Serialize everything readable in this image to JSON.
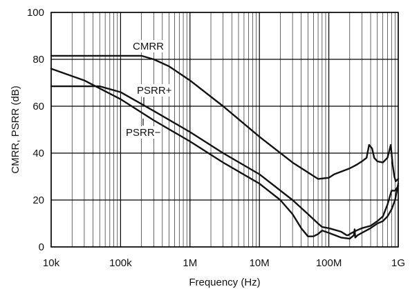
{
  "chart_data": {
    "type": "line",
    "xlabel": "Frequency (Hz)",
    "ylabel": "CMRR, PSRR (dB)",
    "xscale": "log",
    "xlim": [
      10000,
      1000000000
    ],
    "ylim": [
      0,
      100
    ],
    "grid": true,
    "x_ticks": [
      {
        "value": 10000,
        "label": "10k"
      },
      {
        "value": 100000,
        "label": "100k"
      },
      {
        "value": 1000000,
        "label": "1M"
      },
      {
        "value": 10000000,
        "label": "10M"
      },
      {
        "value": 100000000,
        "label": "100M"
      },
      {
        "value": 1000000000,
        "label": "1G"
      }
    ],
    "y_ticks": [
      {
        "value": 0,
        "label": "0"
      },
      {
        "value": 20,
        "label": "20"
      },
      {
        "value": 40,
        "label": "40"
      },
      {
        "value": 60,
        "label": "60"
      },
      {
        "value": 80,
        "label": "80"
      },
      {
        "value": 100,
        "label": "100"
      }
    ],
    "series": [
      {
        "name": "CMRR",
        "label": "CMRR",
        "x": [
          10000,
          100000,
          200000,
          300000,
          500000,
          1000000,
          3000000,
          10000000,
          30000000,
          70000000,
          100000000,
          120000000,
          200000000,
          250000000,
          300000000,
          350000000,
          380000000,
          420000000,
          450000000,
          500000000,
          600000000,
          700000000,
          780000000,
          830000000,
          880000000,
          920000000,
          1000000000
        ],
        "y": [
          81.5,
          81.5,
          81.5,
          80,
          77,
          71,
          60,
          47,
          36,
          29,
          29.5,
          31,
          33.5,
          35,
          36.5,
          38,
          43.5,
          42,
          38,
          36.5,
          36,
          38,
          43.5,
          35,
          30,
          28,
          29
        ]
      },
      {
        "name": "PSRR+",
        "label": "PSRR+",
        "x": [
          10000,
          30000,
          50000,
          100000,
          300000,
          1000000,
          3000000,
          10000000,
          30000000,
          50000000,
          70000000,
          80000000,
          100000000,
          150000000,
          170000000,
          180000000,
          190000000,
          200000000,
          250000000,
          300000000,
          400000000,
          500000000,
          600000000,
          700000000,
          800000000,
          900000000,
          1000000000
        ],
        "y": [
          68.5,
          68.5,
          68.5,
          66,
          58,
          49,
          40,
          31,
          20,
          14,
          10,
          8.5,
          8,
          6.5,
          5.5,
          5,
          5,
          5.5,
          7,
          8,
          9,
          11,
          13,
          18,
          24,
          24,
          26
        ]
      },
      {
        "name": "PSRR−",
        "label": "PSRR−",
        "x": [
          10000,
          30000,
          100000,
          300000,
          1000000,
          3000000,
          10000000,
          20000000,
          30000000,
          40000000,
          50000000,
          60000000,
          70000000,
          80000000,
          100000000,
          150000000,
          200000000,
          230000000,
          235000000,
          240000000,
          260000000,
          300000000,
          400000000,
          500000000,
          600000000,
          700000000,
          800000000,
          900000000,
          1000000000
        ],
        "y": [
          76,
          71,
          63,
          54,
          45,
          36,
          27,
          20,
          14,
          8,
          4.5,
          4.5,
          5.5,
          7,
          6,
          4,
          3.5,
          5,
          7.5,
          4,
          5,
          6,
          8,
          10,
          11,
          13,
          16,
          20,
          27
        ]
      }
    ]
  }
}
